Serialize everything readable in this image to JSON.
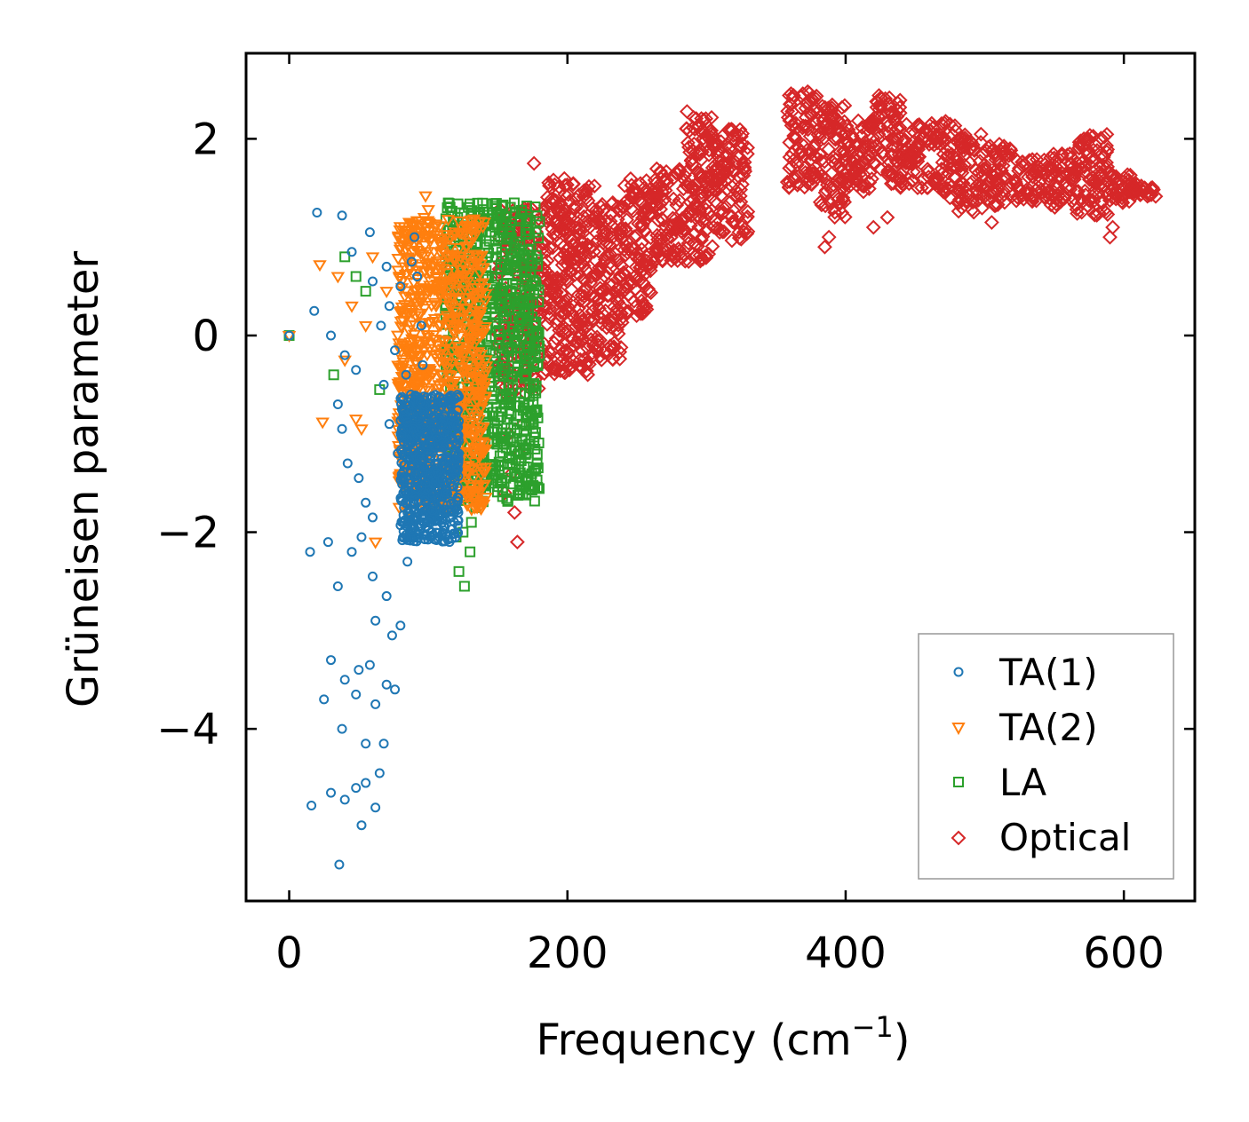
{
  "chart_data": {
    "type": "scatter",
    "title": "",
    "xlabel_main": "Frequency (cm",
    "xlabel_sup": "−1",
    "xlabel_end": ")",
    "ylabel": "Grüneisen parameter",
    "xlim": [
      -31,
      651
    ],
    "ylim": [
      -5.75,
      2.87
    ],
    "xticks": [
      0,
      200,
      400,
      600
    ],
    "xtick_labels": [
      "0",
      "200",
      "400",
      "600"
    ],
    "yticks": [
      2,
      0,
      -2,
      -4
    ],
    "ytick_labels": [
      "2",
      "0",
      "−2",
      "−4"
    ],
    "legend_position": "bottom-right",
    "series": [
      {
        "name": "TA(1)",
        "marker": "circle",
        "color": "#1f77b4",
        "points": [
          [
            0,
            0
          ],
          [
            20,
            1.25
          ],
          [
            38,
            1.22
          ],
          [
            18,
            0.25
          ],
          [
            30,
            0.0
          ],
          [
            45,
            0.85
          ],
          [
            58,
            1.05
          ],
          [
            60,
            0.55
          ],
          [
            72,
            0.3
          ],
          [
            88,
            0.75
          ],
          [
            90,
            1.0
          ],
          [
            95,
            0.1
          ],
          [
            40,
            -0.2
          ],
          [
            48,
            -0.35
          ],
          [
            35,
            -0.7
          ],
          [
            38,
            -0.95
          ],
          [
            42,
            -1.3
          ],
          [
            50,
            -1.45
          ],
          [
            55,
            -1.7
          ],
          [
            60,
            -1.85
          ],
          [
            15,
            -2.2
          ],
          [
            28,
            -2.1
          ],
          [
            35,
            -2.55
          ],
          [
            45,
            -2.2
          ],
          [
            52,
            -2.05
          ],
          [
            60,
            -2.45
          ],
          [
            62,
            -2.9
          ],
          [
            70,
            -2.65
          ],
          [
            74,
            -3.05
          ],
          [
            80,
            -2.95
          ],
          [
            85,
            -2.3
          ],
          [
            30,
            -3.3
          ],
          [
            25,
            -3.7
          ],
          [
            40,
            -3.5
          ],
          [
            50,
            -3.4
          ],
          [
            58,
            -3.35
          ],
          [
            62,
            -3.75
          ],
          [
            70,
            -3.55
          ],
          [
            76,
            -3.6
          ],
          [
            48,
            -3.65
          ],
          [
            55,
            -4.15
          ],
          [
            65,
            -4.45
          ],
          [
            68,
            -4.15
          ],
          [
            38,
            -4.0
          ],
          [
            30,
            -4.65
          ],
          [
            40,
            -4.72
          ],
          [
            48,
            -4.6
          ],
          [
            55,
            -4.55
          ],
          [
            62,
            -4.8
          ],
          [
            16,
            -4.78
          ],
          [
            52,
            -4.98
          ],
          [
            36,
            -5.38
          ],
          [
            68,
            -0.5
          ],
          [
            72,
            -0.9
          ],
          [
            78,
            -1.2
          ],
          [
            82,
            -1.6
          ],
          [
            85,
            -1.8
          ],
          [
            88,
            -2.0
          ],
          [
            92,
            -1.3
          ],
          [
            95,
            -0.8
          ],
          [
            98,
            -1.5
          ],
          [
            100,
            -1.9
          ],
          [
            102,
            -1.1
          ],
          [
            104,
            -1.7
          ],
          [
            106,
            -1.4
          ],
          [
            108,
            -2.05
          ],
          [
            110,
            -0.9
          ],
          [
            112,
            -1.6
          ],
          [
            114,
            -1.2
          ],
          [
            116,
            -1.85
          ],
          [
            118,
            -1.45
          ],
          [
            96,
            -0.3
          ],
          [
            84,
            -0.4
          ],
          [
            76,
            -0.15
          ],
          [
            66,
            0.1
          ],
          [
            80,
            0.5
          ],
          [
            92,
            0.6
          ],
          [
            70,
            0.7
          ]
        ],
        "dense_region": {
          "x": [
            80,
            122
          ],
          "y": [
            -2.1,
            -0.6
          ],
          "n": 650
        }
      },
      {
        "name": "TA(2)",
        "marker": "triangle-down",
        "color": "#ff7f0e",
        "points": [
          [
            0,
            0
          ],
          [
            22,
            0.72
          ],
          [
            35,
            0.6
          ],
          [
            40,
            -0.25
          ],
          [
            24,
            -0.88
          ],
          [
            48,
            -0.85
          ],
          [
            52,
            -0.95
          ],
          [
            62,
            -2.1
          ],
          [
            45,
            0.3
          ],
          [
            55,
            0.1
          ],
          [
            98,
            1.42
          ],
          [
            100,
            1.28
          ],
          [
            94,
            1.12
          ],
          [
            108,
            0.95
          ],
          [
            60,
            0.8
          ],
          [
            70,
            0.45
          ],
          [
            85,
            -0.6
          ]
        ],
        "dense_region": {
          "x": [
            78,
            142
          ],
          "y": [
            -1.8,
            1.2
          ],
          "n": 900
        }
      },
      {
        "name": "LA",
        "marker": "square",
        "color": "#2ca02c",
        "points": [
          [
            0,
            0
          ],
          [
            32,
            -0.4
          ],
          [
            40,
            0.8
          ],
          [
            48,
            0.6
          ],
          [
            55,
            0.45
          ],
          [
            65,
            -0.55
          ],
          [
            120,
            -2.05
          ],
          [
            122,
            -2.4
          ],
          [
            126,
            -2.55
          ],
          [
            130,
            -2.2
          ],
          [
            125,
            -2.0
          ],
          [
            131,
            -1.9
          ],
          [
            134,
            -1.75
          ]
        ],
        "dense_region": {
          "x": [
            112,
            180
          ],
          "y": [
            -1.7,
            1.35
          ],
          "n": 850
        }
      },
      {
        "name": "Optical",
        "marker": "diamond",
        "color": "#d62728",
        "points": [
          [
            176,
            1.75
          ],
          [
            158,
            -1.0
          ],
          [
            160,
            -1.4
          ],
          [
            162,
            -1.8
          ],
          [
            164,
            -2.1
          ],
          [
            156,
            -0.6
          ],
          [
            155,
            -1.6
          ],
          [
            166,
            -1.2
          ],
          [
            168,
            -0.9
          ],
          [
            170,
            -0.5
          ],
          [
            385,
            0.9
          ],
          [
            388,
            1.0
          ],
          [
            590,
            1.0
          ],
          [
            592,
            1.1
          ],
          [
            505,
            1.15
          ],
          [
            475,
            1.4
          ],
          [
            420,
            1.1
          ],
          [
            430,
            1.2
          ]
        ],
        "bands": [
          {
            "x": [
              150,
              180
            ],
            "lo": -0.6,
            "hi": 1.3
          },
          {
            "x": [
              180,
              200
            ],
            "lo": -0.4,
            "hi": 1.6
          },
          {
            "x": [
              200,
              220
            ],
            "lo": -0.4,
            "hi": 1.6
          },
          {
            "x": [
              220,
              240
            ],
            "lo": -0.25,
            "hi": 1.4
          },
          {
            "x": [
              240,
              260
            ],
            "lo": 0.2,
            "hi": 1.6
          },
          {
            "x": [
              260,
              285
            ],
            "lo": 0.75,
            "hi": 1.7
          },
          {
            "x": [
              285,
              305
            ],
            "lo": 0.75,
            "hi": 2.3
          },
          {
            "x": [
              305,
              330
            ],
            "lo": 0.95,
            "hi": 2.1
          },
          {
            "x": [
              358,
              380
            ],
            "lo": 1.5,
            "hi": 2.48
          },
          {
            "x": [
              380,
              400
            ],
            "lo": 1.2,
            "hi": 2.35
          },
          {
            "x": [
              400,
              420
            ],
            "lo": 1.45,
            "hi": 2.2
          },
          {
            "x": [
              420,
              440
            ],
            "lo": 1.5,
            "hi": 2.45
          },
          {
            "x": [
              440,
              460
            ],
            "lo": 1.5,
            "hi": 2.15
          },
          {
            "x": [
              460,
              480
            ],
            "lo": 1.45,
            "hi": 2.2
          },
          {
            "x": [
              480,
              500
            ],
            "lo": 1.25,
            "hi": 2.05
          },
          {
            "x": [
              500,
              520
            ],
            "lo": 1.3,
            "hi": 1.95
          },
          {
            "x": [
              520,
              545
            ],
            "lo": 1.35,
            "hi": 1.8
          },
          {
            "x": [
              545,
              565
            ],
            "lo": 1.3,
            "hi": 1.85
          },
          {
            "x": [
              565,
              590
            ],
            "lo": 1.2,
            "hi": 2.05
          },
          {
            "x": [
              590,
              605
            ],
            "lo": 1.35,
            "hi": 1.65
          },
          {
            "x": [
              605,
              625
            ],
            "lo": 1.4,
            "hi": 1.55
          }
        ]
      }
    ]
  }
}
